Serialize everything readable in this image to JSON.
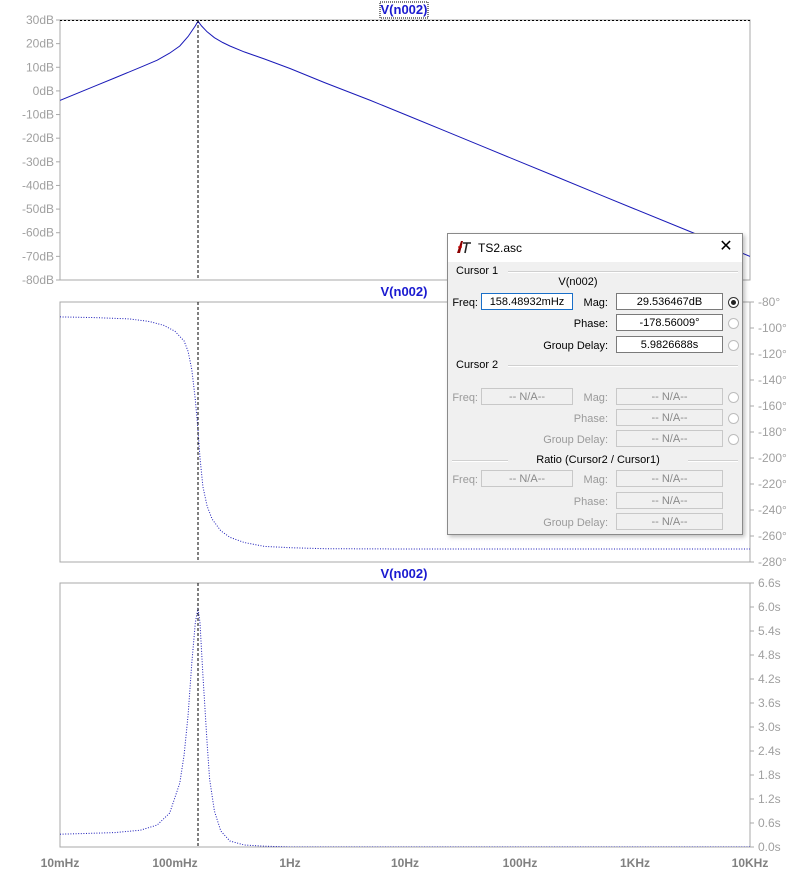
{
  "chart_data": [
    {
      "type": "line",
      "trace_name": "V(n002)",
      "x_scale": "log",
      "xlim": [
        0.01,
        10000
      ],
      "ylim": [
        -80,
        30
      ],
      "y_unit": "dB",
      "y_ticks": [
        "30dB",
        "20dB",
        "10dB",
        "0dB",
        "-10dB",
        "-20dB",
        "-30dB",
        "-40dB",
        "-50dB",
        "-60dB",
        "-70dB",
        "-80dB"
      ],
      "line_style": "solid",
      "series": [
        {
          "name": "V(n002)",
          "x": [
            0.01,
            0.02,
            0.03,
            0.05,
            0.07,
            0.09,
            0.11,
            0.13,
            0.15,
            0.1585,
            0.17,
            0.19,
            0.22,
            0.26,
            0.3,
            0.4,
            0.6,
            1,
            2,
            5,
            10,
            20,
            50,
            100,
            200,
            500,
            1000,
            3000,
            10000
          ],
          "y": [
            -4,
            2,
            5.5,
            10,
            13,
            16,
            19,
            23,
            27.5,
            29.5,
            27.5,
            25,
            22.5,
            20.5,
            19,
            16.5,
            13.5,
            9.5,
            3.5,
            -4,
            -10,
            -16,
            -24,
            -30,
            -36,
            -44,
            -50,
            -59.5,
            -70
          ]
        }
      ]
    },
    {
      "type": "line",
      "trace_name": "V(n002)",
      "x_scale": "log",
      "xlim": [
        0.01,
        10000
      ],
      "ylim": [
        -280,
        -80
      ],
      "y_unit": "°",
      "y_ticks": [
        "-80°",
        "-100°",
        "-120°",
        "-140°",
        "-160°",
        "-180°",
        "-200°",
        "-220°",
        "-240°",
        "-260°",
        "-280°"
      ],
      "line_style": "dotted",
      "series": [
        {
          "name": "V(n002)",
          "x": [
            0.01,
            0.02,
            0.04,
            0.06,
            0.08,
            0.1,
            0.12,
            0.13,
            0.14,
            0.15,
            0.1585,
            0.165,
            0.175,
            0.19,
            0.21,
            0.25,
            0.3,
            0.4,
            0.6,
            1,
            2,
            10,
            100,
            10000
          ],
          "y": [
            -91.5,
            -92,
            -93,
            -95,
            -98,
            -102.5,
            -110,
            -118,
            -132,
            -155,
            -178.5,
            -200,
            -222,
            -237,
            -247,
            -256,
            -261,
            -265,
            -268,
            -269,
            -269.8,
            -270,
            -270,
            -270
          ]
        }
      ]
    },
    {
      "type": "line",
      "trace_name": "V(n002)",
      "x_scale": "log",
      "xlim": [
        0.01,
        10000
      ],
      "ylim": [
        0,
        6.6
      ],
      "y_unit": "s",
      "y_ticks": [
        "6.6s",
        "6.0s",
        "5.4s",
        "4.8s",
        "4.2s",
        "3.6s",
        "3.0s",
        "2.4s",
        "1.8s",
        "1.2s",
        "0.6s",
        "0.0s"
      ],
      "line_style": "dotted",
      "series": [
        {
          "name": "V(n002)",
          "x": [
            0.01,
            0.03,
            0.05,
            0.07,
            0.09,
            0.11,
            0.12,
            0.13,
            0.14,
            0.15,
            0.1585,
            0.165,
            0.175,
            0.19,
            0.2,
            0.22,
            0.25,
            0.3,
            0.4,
            0.6,
            1,
            10000
          ],
          "y": [
            0.32,
            0.36,
            0.42,
            0.55,
            0.85,
            1.6,
            2.3,
            3.3,
            4.6,
            5.6,
            5.98,
            5.6,
            4.3,
            2.6,
            1.7,
            0.9,
            0.4,
            0.15,
            0.05,
            0.02,
            0.0,
            0.0
          ]
        }
      ]
    }
  ],
  "x_ticks": [
    "10mHz",
    "100mHz",
    "1Hz",
    "10Hz",
    "100Hz",
    "1KHz",
    "10KHz"
  ],
  "cursor_x": 0.1585,
  "colors": {
    "trace": "#1a1ab8",
    "title": "#1a1ad0",
    "grid": "#b0b0b0"
  },
  "dialog": {
    "title": "TS2.asc",
    "close_label": "✕",
    "cursor1": {
      "group_label": "Cursor 1",
      "trace": "V(n002)",
      "freq_label": "Freq:",
      "freq": "158.48932mHz",
      "mag_label": "Mag:",
      "mag": "29.536467dB",
      "phase_label": "Phase:",
      "phase": "-178.56009°",
      "gd_label": "Group Delay:",
      "gd": "5.9826688s"
    },
    "cursor2": {
      "group_label": "Cursor 2",
      "freq_label": "Freq:",
      "freq": "-- N/A--",
      "mag_label": "Mag:",
      "mag": "-- N/A--",
      "phase_label": "Phase:",
      "phase": "-- N/A--",
      "gd_label": "Group Delay:",
      "gd": "-- N/A--"
    },
    "ratio": {
      "group_label": "Ratio (Cursor2 / Cursor1)",
      "freq_label": "Freq:",
      "freq": "-- N/A--",
      "mag_label": "Mag:",
      "mag": "-- N/A--",
      "phase_label": "Phase:",
      "phase": "-- N/A--",
      "gd_label": "Group Delay:",
      "gd": "-- N/A--"
    }
  }
}
